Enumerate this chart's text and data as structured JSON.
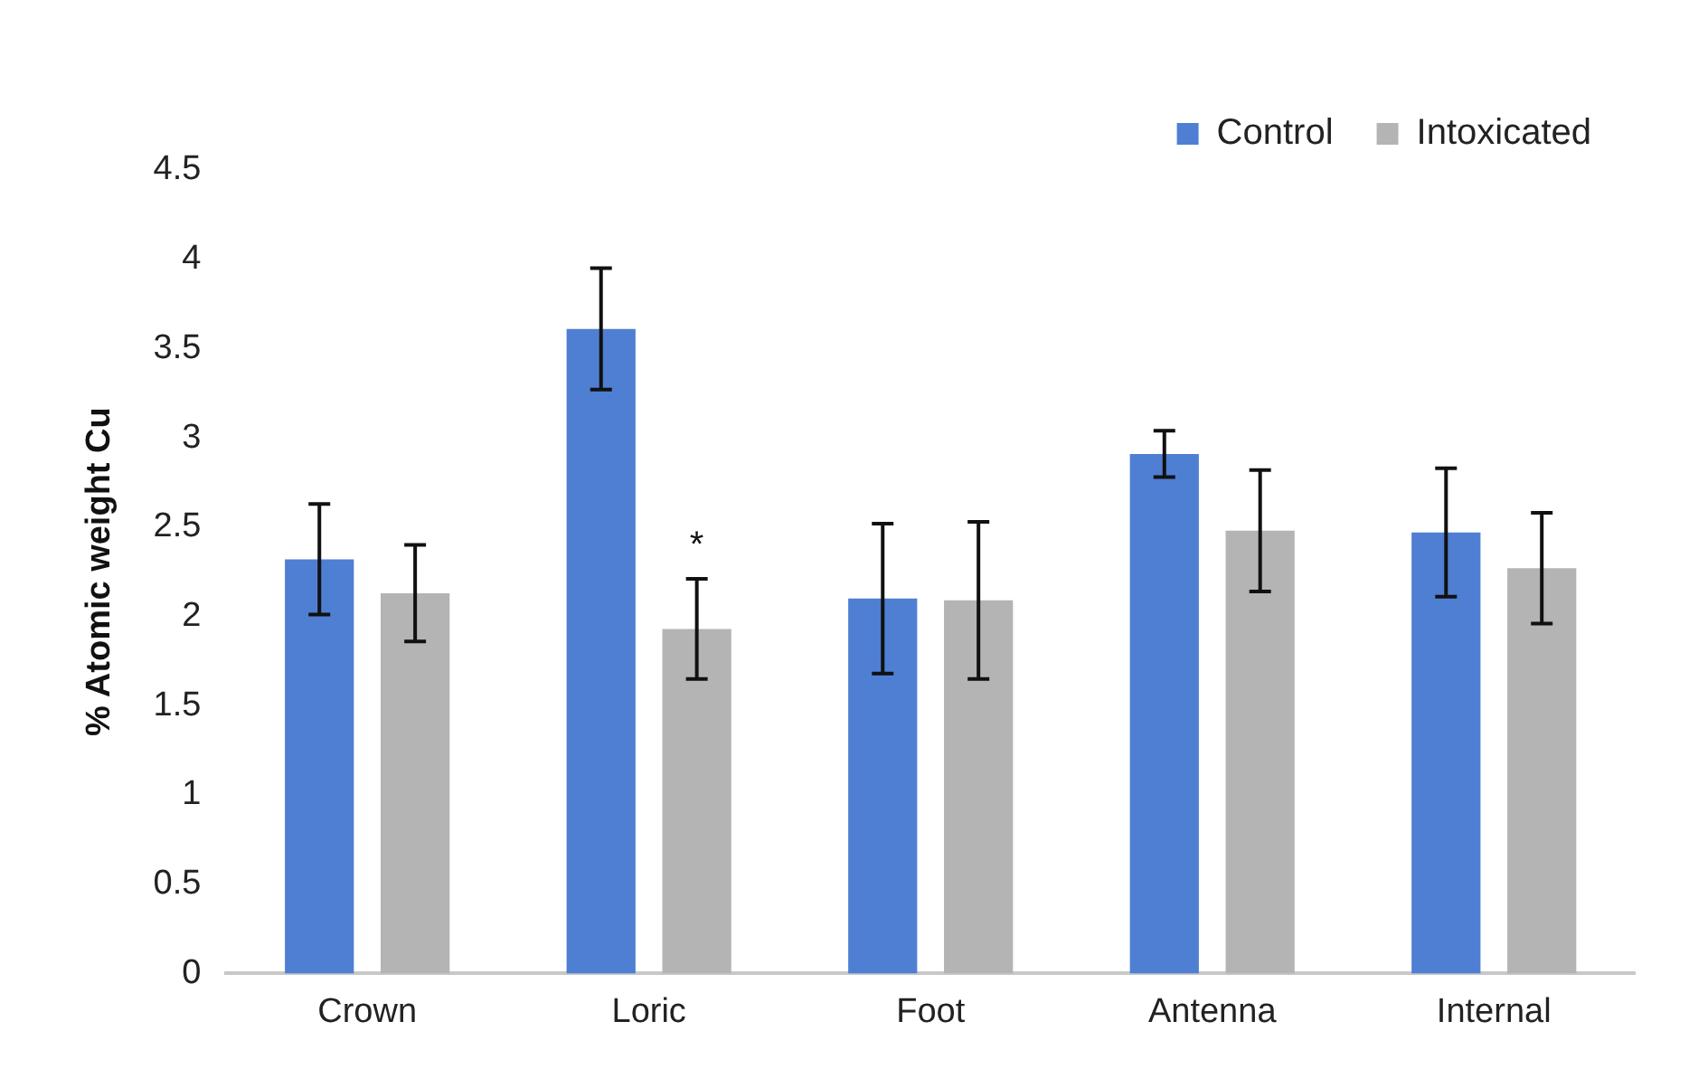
{
  "chart_data": {
    "type": "bar",
    "ylabel": "% Atomic weight Cu",
    "categories": [
      "Crown",
      "Loric",
      "Foot",
      "Antenna",
      "Internal"
    ],
    "series": [
      {
        "name": "Control",
        "color": "#4f7fd3",
        "values": [
          2.32,
          3.61,
          2.1,
          2.91,
          2.47
        ],
        "errors": [
          0.31,
          0.34,
          0.42,
          0.13,
          0.36
        ]
      },
      {
        "name": "Intoxicated",
        "color": "#b4b4b4",
        "values": [
          2.13,
          1.93,
          2.09,
          2.48,
          2.27
        ],
        "errors": [
          0.27,
          0.28,
          0.44,
          0.34,
          0.31
        ]
      }
    ],
    "ylim": [
      0,
      4.5
    ],
    "yticks": [
      0,
      0.5,
      1,
      1.5,
      2,
      2.5,
      3,
      3.5,
      4,
      4.5
    ],
    "grid": false,
    "legend": "top right",
    "annotations": [
      "*"
    ]
  }
}
